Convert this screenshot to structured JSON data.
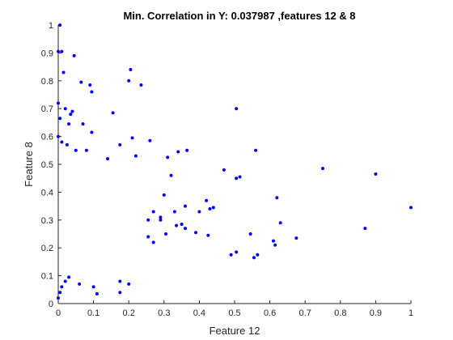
{
  "chart_data": {
    "type": "scatter",
    "title": "Min. Correlation in Y: 0.037987 ,features 12 & 8",
    "xlabel": "Feature 12",
    "ylabel": "Feature 8",
    "xlim": [
      0,
      1
    ],
    "ylim": [
      0,
      1
    ],
    "x_ticks": [
      0,
      0.1,
      0.2,
      0.3,
      0.4,
      0.5,
      0.6,
      0.7,
      0.8,
      0.9,
      1
    ],
    "x_tick_labels": [
      "0",
      "0.1",
      "0.2",
      "0.3",
      "0.4",
      "0.5",
      "0.6",
      "0.7",
      "0.8",
      "0.9",
      "1"
    ],
    "y_ticks": [
      0,
      0.1,
      0.2,
      0.3,
      0.4,
      0.5,
      0.6,
      0.7,
      0.8,
      0.9,
      1
    ],
    "y_tick_labels": [
      "0",
      "0.1",
      "0.2",
      "0.3",
      "0.4",
      "0.5",
      "0.6",
      "0.7",
      "0.8",
      "0.9",
      "1"
    ],
    "grid": false,
    "marker_color": "#0000ff",
    "series": [
      {
        "x": [
          0.005,
          0.01,
          0.0,
          0.015,
          0.045,
          0.065,
          0.09,
          0.095,
          0.205,
          0.2,
          0.235,
          0.0,
          0.005,
          0.02,
          0.035,
          0.04,
          0.03,
          0.07,
          0.095,
          0.155,
          0.21,
          0.505,
          0.0,
          0.01,
          0.025,
          0.05,
          0.08,
          0.14,
          0.175,
          0.22,
          0.26,
          0.31,
          0.34,
          0.365,
          0.56,
          0.75,
          0.9,
          1.0,
          0.47,
          0.515,
          0.505,
          0.42,
          0.43,
          0.4,
          0.44,
          0.32,
          0.3,
          0.36,
          0.255,
          0.27,
          0.29,
          0.35,
          0.33,
          0.62,
          0.63,
          0.61,
          0.87,
          0.675,
          0.545,
          0.555,
          0.565,
          0.49,
          0.505,
          0.615,
          0.425,
          0.39,
          0.36,
          0.335,
          0.305,
          0.29,
          0.27,
          0.255,
          0.175,
          0.0,
          0.005,
          0.01,
          0.02,
          0.03,
          0.06,
          0.1,
          0.11,
          0.175,
          0.2
        ],
        "y": [
          1.0,
          0.905,
          0.905,
          0.83,
          0.89,
          0.795,
          0.785,
          0.76,
          0.84,
          0.8,
          0.785,
          0.72,
          0.665,
          0.7,
          0.68,
          0.69,
          0.645,
          0.645,
          0.615,
          0.685,
          0.595,
          0.7,
          0.6,
          0.58,
          0.57,
          0.55,
          0.55,
          0.52,
          0.57,
          0.53,
          0.585,
          0.525,
          0.545,
          0.55,
          0.55,
          0.485,
          0.465,
          0.345,
          0.48,
          0.455,
          0.45,
          0.37,
          0.34,
          0.33,
          0.345,
          0.46,
          0.39,
          0.35,
          0.3,
          0.33,
          0.31,
          0.285,
          0.33,
          0.38,
          0.29,
          0.225,
          0.27,
          0.235,
          0.25,
          0.165,
          0.175,
          0.175,
          0.185,
          0.21,
          0.245,
          0.255,
          0.27,
          0.28,
          0.25,
          0.3,
          0.22,
          0.24,
          0.04,
          0.02,
          0.04,
          0.06,
          0.08,
          0.095,
          0.07,
          0.06,
          0.035,
          0.08,
          0.07
        ]
      }
    ]
  }
}
